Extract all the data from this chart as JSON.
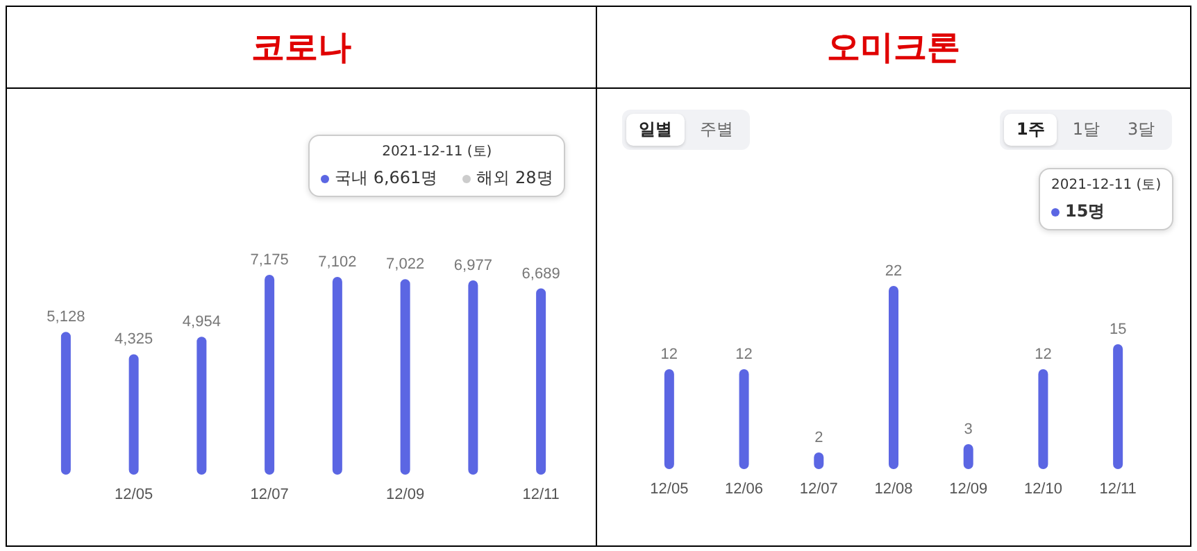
{
  "chart_data": [
    {
      "type": "bar",
      "title": "코로나",
      "categories": [
        null,
        "12/05",
        null,
        "12/07",
        null,
        "12/09",
        null,
        "12/11"
      ],
      "values": [
        5128,
        4325,
        4954,
        7175,
        7102,
        7022,
        6977,
        6689
      ],
      "value_labels": [
        "5,128",
        "4,325",
        "4,954",
        "7,175",
        "7,102",
        "7,022",
        "6,977",
        "6,689"
      ],
      "color": "#5b66e3",
      "tick_labels": "x",
      "annotations": [
        "2021-12-11 (토)",
        "국내 6,661명",
        "해외 28명"
      ]
    },
    {
      "type": "bar",
      "title": "오미크론",
      "categories": [
        "12/05",
        "12/06",
        "12/07",
        "12/08",
        "12/09",
        "12/10",
        "12/11"
      ],
      "values": [
        12,
        12,
        2,
        22,
        3,
        12,
        15
      ],
      "color": "#5b66e3",
      "data_labels": true,
      "tick_labels": "x",
      "annotations": [
        "일별",
        "주별",
        "1주",
        "1달",
        "3달",
        "2021-12-11 (토)",
        "15명"
      ]
    }
  ]
}
